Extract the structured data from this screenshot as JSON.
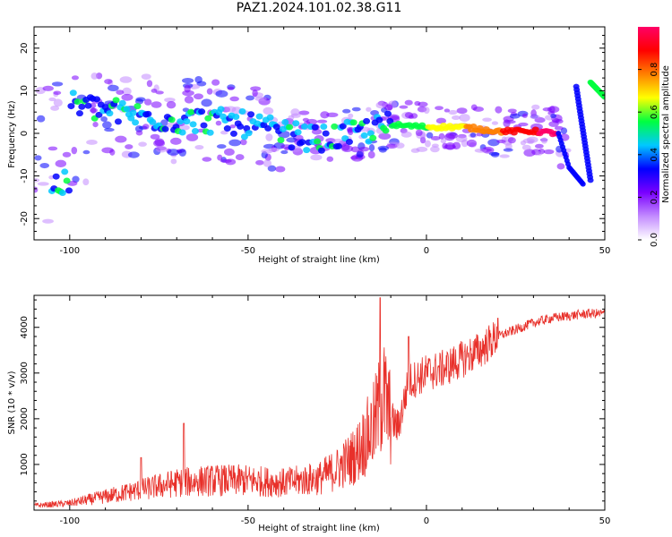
{
  "title": "PAZ1.2024.101.02.38.G11",
  "chart_data": [
    {
      "type": "heatmap",
      "xlabel": "Height of straight line (km)",
      "ylabel": "Frequency (Hz)",
      "xlim": [
        -110,
        50
      ],
      "ylim": [
        -25,
        25
      ],
      "x_ticks": [
        -100,
        -50,
        0,
        50
      ],
      "y_ticks": [
        -20,
        -10,
        0,
        10,
        20
      ],
      "colorbar": {
        "label": "Normalized spectral amplitude",
        "range": [
          0,
          1
        ],
        "ticks": [
          "0.0",
          "0.2",
          "0.4",
          "0.6",
          "0.8"
        ],
        "colors": [
          "#ffffff",
          "#c38bff",
          "#7a00ff",
          "#0000ff",
          "#00c8ff",
          "#00ff40",
          "#ffff00",
          "#ff8000",
          "#ff0000",
          "#ff0066"
        ]
      },
      "ridge": {
        "description_points_x": [
          -100,
          -90,
          -80,
          -70,
          -60,
          -50,
          -40,
          -30,
          -20,
          -10,
          0,
          10,
          20,
          30,
          37,
          40,
          44
        ],
        "description_points_y": [
          7,
          5.5,
          4,
          3,
          3,
          2,
          0,
          -1.5,
          0,
          2,
          1.5,
          1.5,
          0.5,
          0.5,
          0,
          -8,
          -12
        ]
      },
      "secondary_traces": [
        {
          "x": [
            42,
            46
          ],
          "y": [
            11,
            -11
          ]
        },
        {
          "x": [
            46,
            50
          ],
          "y": [
            12,
            8.5
          ]
        }
      ]
    },
    {
      "type": "line",
      "xlabel": "Height of straight line (km)",
      "ylabel": "SNR (10 * v/v)",
      "xlim": [
        -110,
        50
      ],
      "ylim": [
        0,
        4700
      ],
      "x_ticks": [
        -100,
        -50,
        0,
        50
      ],
      "y_ticks": [
        1000,
        2000,
        3000,
        4000
      ],
      "line_color": "#e8302a",
      "envelope_x": [
        -110,
        -100,
        -90,
        -80,
        -70,
        -60,
        -50,
        -40,
        -30,
        -25,
        -20,
        -15,
        -12,
        -10,
        -8,
        -5,
        0,
        5,
        10,
        15,
        20,
        25,
        30,
        35,
        40,
        45,
        50
      ],
      "envelope_y": [
        100,
        150,
        300,
        450,
        600,
        650,
        650,
        600,
        700,
        900,
        1200,
        1800,
        2500,
        2000,
        1800,
        2800,
        3000,
        3100,
        3300,
        3500,
        3800,
        3950,
        4100,
        4200,
        4250,
        4300,
        4300
      ],
      "peaks": [
        {
          "x": -80,
          "y": 1150
        },
        {
          "x": -68,
          "y": 1900
        },
        {
          "x": -13,
          "y": 4650
        },
        {
          "x": -5,
          "y": 3800
        },
        {
          "x": 20,
          "y": 4200
        }
      ]
    }
  ]
}
